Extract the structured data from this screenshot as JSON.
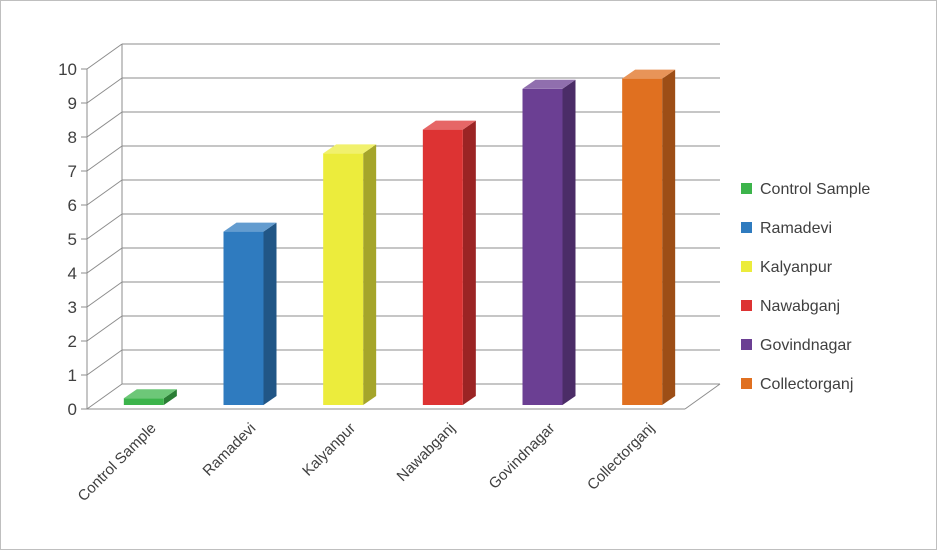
{
  "chart_data": {
    "type": "bar",
    "three_d": true,
    "categories": [
      "Control Sample",
      "Ramadevi",
      "Kalyanpur",
      "Nawabganj",
      "Govindnagar",
      "Collectorganj"
    ],
    "values": [
      0.2,
      5.1,
      7.4,
      8.1,
      9.3,
      9.6
    ],
    "colors": [
      "#3cb44b",
      "#2f7bbf",
      "#ecec3c",
      "#dd3333",
      "#6b3f93",
      "#e07020"
    ],
    "title": "",
    "xlabel": "",
    "ylabel": "",
    "ylim": [
      0,
      10
    ],
    "yticks": [
      0,
      1,
      2,
      3,
      4,
      5,
      6,
      7,
      8,
      9,
      10
    ],
    "grid": true,
    "legend": {
      "position": "right",
      "entries": [
        "Control Sample",
        "Ramadevi",
        "Kalyanpur",
        "Nawabganj",
        "Govindnagar",
        "Collectorganj"
      ]
    }
  }
}
